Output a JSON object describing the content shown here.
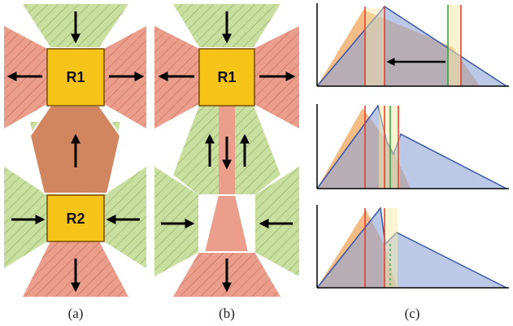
{
  "panels": {
    "a": {
      "caption": "(a)",
      "region_top": "R1",
      "region_bottom": "R2"
    },
    "b": {
      "caption": "(b)",
      "region_top": "R1"
    },
    "c": {
      "caption": "(c)"
    }
  },
  "colors": {
    "attract": "#c9dfa0",
    "repel": "#ec9e8c",
    "region": "#f6c318",
    "orange_fill": "#f2b070",
    "blue_fill": "#8ea4d6",
    "blue_line": "#3b57a8",
    "marker_red": "#e2372a",
    "marker_green": "#2f9e44",
    "marker_yellow": "#f7e9a8"
  }
}
